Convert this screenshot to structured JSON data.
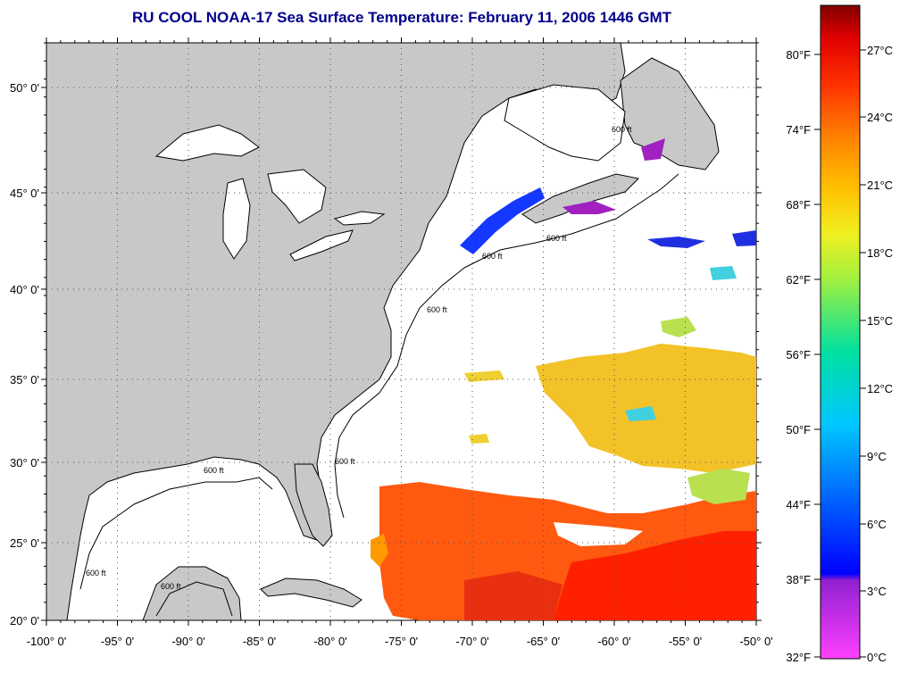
{
  "title": "RU COOL  NOAA-17  Sea Surface Temperature:  February 11, 2006 1446 GMT",
  "lon_ticks": [
    "-100° 0'",
    "-95° 0'",
    "-90° 0'",
    "-85° 0'",
    "-80° 0'",
    "-75° 0'",
    "-70° 0'",
    "-65° 0'",
    "-60° 0'",
    "-55° 0'",
    "-50° 0'"
  ],
  "lat_ticks": [
    "50° 0'",
    "45° 0'",
    "40° 0'",
    "35° 0'",
    "30° 0'",
    "25° 0'",
    "20° 0'"
  ],
  "colorbar": {
    "fahrenheit": [
      "80°F",
      "74°F",
      "68°F",
      "62°F",
      "56°F",
      "50°F",
      "44°F",
      "38°F",
      "32°F"
    ],
    "celsius": [
      "27°C",
      "24°C",
      "21°C",
      "18°C",
      "15°C",
      "12°C",
      "9°C",
      "6°C",
      "3°C",
      "0°C"
    ]
  },
  "contour_labels": [
    "600 ft",
    "600 ft",
    "600 ft",
    "600 ft",
    "600 ft",
    "600 ft",
    "600 ft",
    "600 ft"
  ],
  "colors": {
    "land": "#c8c8c8",
    "ocean": "#ffffff",
    "title": "#00008b",
    "warm": "#ff4400",
    "mid": "#f0c020",
    "cold": "#1030ff",
    "cold_max": "#cc00cc"
  }
}
